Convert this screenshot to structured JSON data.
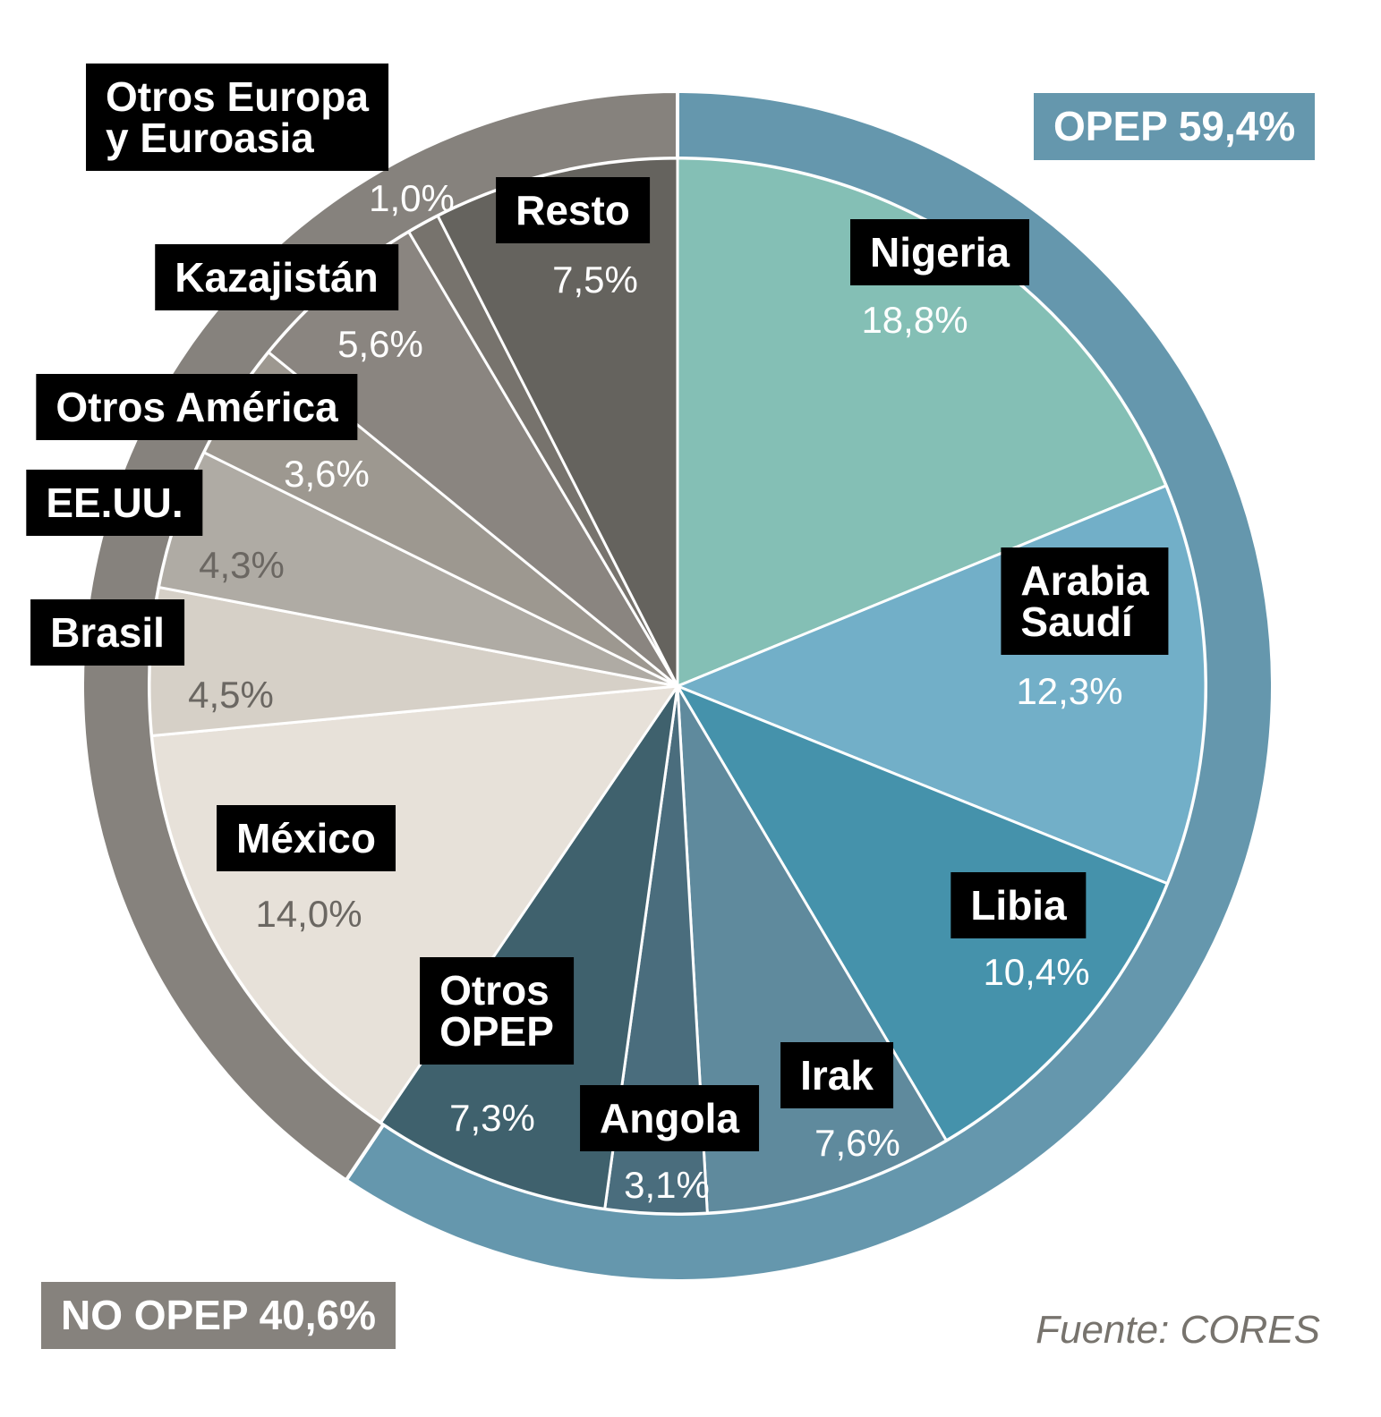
{
  "chart_data": {
    "type": "pie",
    "categories": [
      "Nigeria",
      "Arabia\nSaudí",
      "Libia",
      "Irak",
      "Angola",
      "Otros\nOPEP",
      "México",
      "Brasil",
      "EE.UU.",
      "Otros América",
      "Kazajistán",
      "Otros Europa\ny Euroasia",
      "Resto"
    ],
    "values": [
      18.8,
      12.3,
      10.4,
      7.6,
      3.1,
      7.3,
      14.0,
      4.5,
      4.3,
      3.6,
      5.6,
      1.0,
      7.5
    ],
    "value_labels": [
      "18,8%",
      "12,3%",
      "10,4%",
      "7,6%",
      "3,1%",
      "7,3%",
      "14,0%",
      "4,5%",
      "4,3%",
      "3,6%",
      "5,6%",
      "1,0%",
      "7,5%"
    ],
    "colors": [
      "#84bfb5",
      "#72afc8",
      "#4592ab",
      "#5f8a9d",
      "#4a6d7d",
      "#3f616d",
      "#e7e1d9",
      "#d6d0c7",
      "#afaba4",
      "#9d9890",
      "#8a8580",
      "#77736d",
      "#65635e"
    ],
    "rings": {
      "categories": [
        "OPEP",
        "NO OPEP"
      ],
      "values": [
        59.4,
        40.6
      ],
      "value_labels": [
        "59,4%",
        "40,6%"
      ],
      "colors": [
        "#6597ad",
        "#86827d"
      ]
    },
    "source": "Fuente: CORES"
  }
}
